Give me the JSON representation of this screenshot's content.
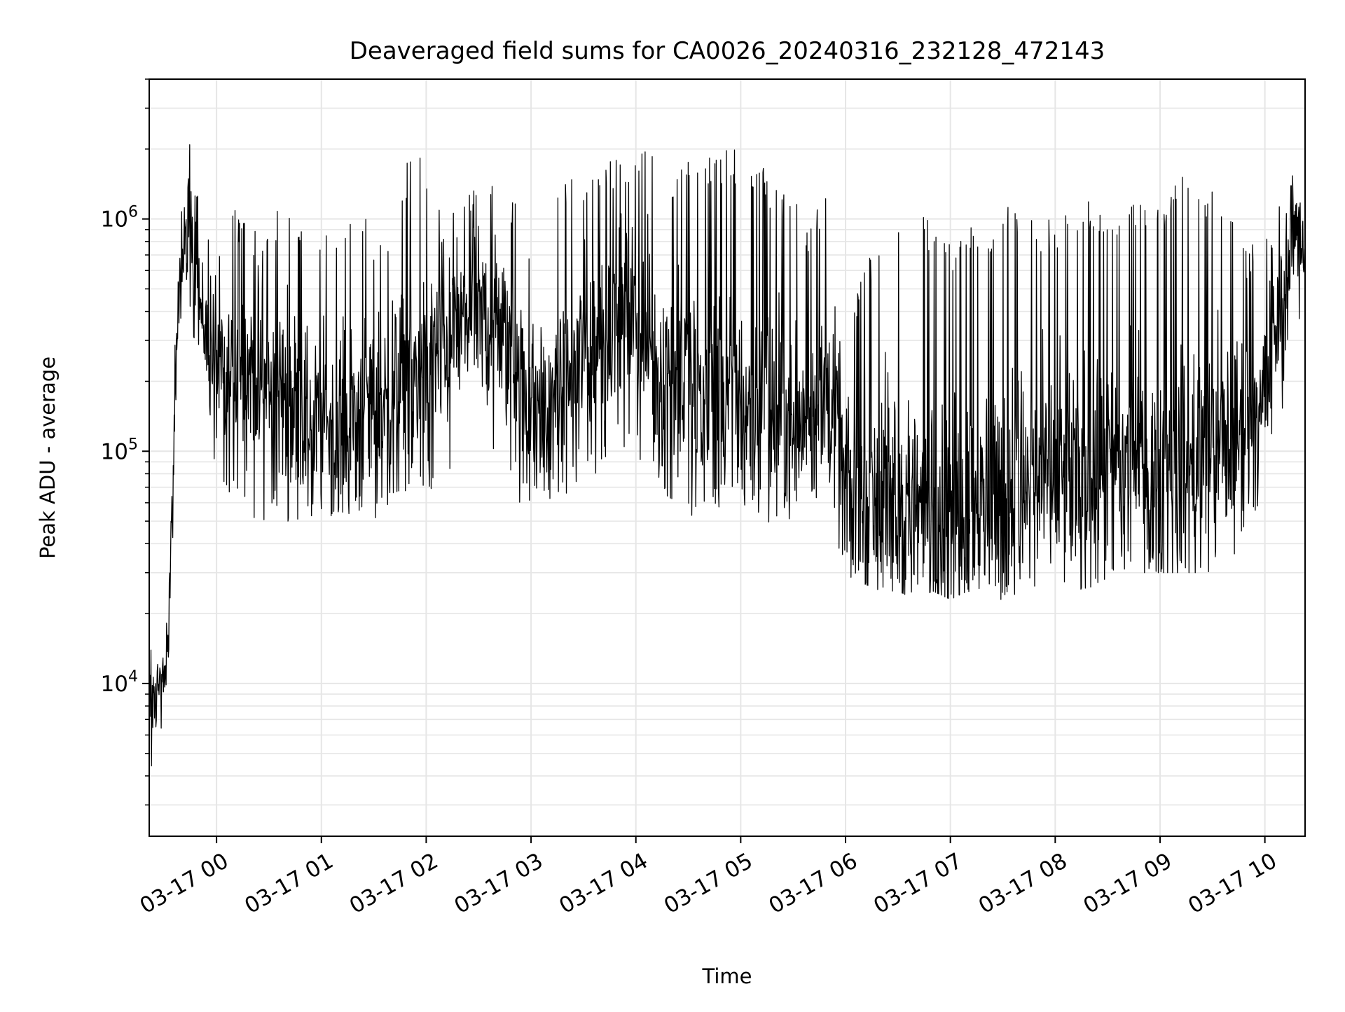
{
  "chart_data": {
    "type": "line",
    "title": "Deaveraged field sums for CA0026_20240316_232128_472143",
    "xlabel": "Time",
    "ylabel": "Peak ADU - average",
    "yscale": "log",
    "ylim": [
      2200,
      4000000
    ],
    "y_major_ticks": [
      10000,
      100000,
      1000000
    ],
    "y_major_tick_labels": [
      {
        "base": "10",
        "exp": "4"
      },
      {
        "base": "10",
        "exp": "5"
      },
      {
        "base": "10",
        "exp": "6"
      }
    ],
    "xlim": [
      "2024-03-16 23:21:28",
      "2024-03-17 10:23:00"
    ],
    "x_ticks": [
      "2024-03-17 00:00",
      "2024-03-17 01:00",
      "2024-03-17 02:00",
      "2024-03-17 03:00",
      "2024-03-17 04:00",
      "2024-03-17 05:00",
      "2024-03-17 06:00",
      "2024-03-17 07:00",
      "2024-03-17 08:00",
      "2024-03-17 09:00",
      "2024-03-17 10:00"
    ],
    "x_tick_labels": [
      "03-17 00",
      "03-17 01",
      "03-17 02",
      "03-17 03",
      "03-17 04",
      "03-17 05",
      "03-17 06",
      "03-17 07",
      "03-17 08",
      "03-17 09",
      "03-17 10"
    ],
    "grid": true,
    "line_color": "#000000",
    "grid_color": "#e6e6e6",
    "series": [
      {
        "x": [
          "2024-03-16 23:21:28",
          "2024-03-16 23:24",
          "2024-03-16 23:27",
          "2024-03-16 23:30",
          "2024-03-16 23:33",
          "2024-03-16 23:36",
          "2024-03-16 23:39",
          "2024-03-16 23:42",
          "2024-03-16 23:45",
          "2024-03-16 23:48",
          "2024-03-16 23:51",
          "2024-03-16 23:55",
          "2024-03-17 00:00",
          "2024-03-17 00:05",
          "2024-03-17 00:10",
          "2024-03-17 00:15",
          "2024-03-17 00:20",
          "2024-03-17 00:30",
          "2024-03-17 00:40",
          "2024-03-17 00:50",
          "2024-03-17 01:00",
          "2024-03-17 01:10",
          "2024-03-17 01:20",
          "2024-03-17 01:30",
          "2024-03-17 01:40",
          "2024-03-17 01:50",
          "2024-03-17 02:00",
          "2024-03-17 02:10",
          "2024-03-17 02:20",
          "2024-03-17 02:30",
          "2024-03-17 02:40",
          "2024-03-17 02:50",
          "2024-03-17 03:00",
          "2024-03-17 03:10",
          "2024-03-17 03:20",
          "2024-03-17 03:30",
          "2024-03-17 03:40",
          "2024-03-17 03:50",
          "2024-03-17 04:00",
          "2024-03-17 04:10",
          "2024-03-17 04:20",
          "2024-03-17 04:30",
          "2024-03-17 04:40",
          "2024-03-17 04:50",
          "2024-03-17 05:00",
          "2024-03-17 05:10",
          "2024-03-17 05:20",
          "2024-03-17 05:30",
          "2024-03-17 05:40",
          "2024-03-17 05:50",
          "2024-03-17 05:55",
          "2024-03-17 06:00",
          "2024-03-17 06:10",
          "2024-03-17 06:20",
          "2024-03-17 06:30",
          "2024-03-17 06:40",
          "2024-03-17 06:50",
          "2024-03-17 07:00",
          "2024-03-17 07:10",
          "2024-03-17 07:20",
          "2024-03-17 07:30",
          "2024-03-17 07:40",
          "2024-03-17 07:50",
          "2024-03-17 08:00",
          "2024-03-17 08:10",
          "2024-03-17 08:20",
          "2024-03-17 08:30",
          "2024-03-17 08:40",
          "2024-03-17 08:50",
          "2024-03-17 09:00",
          "2024-03-17 09:10",
          "2024-03-17 09:20",
          "2024-03-17 09:30",
          "2024-03-17 09:40",
          "2024-03-17 09:50",
          "2024-03-17 10:00",
          "2024-03-17 10:05",
          "2024-03-17 10:10",
          "2024-03-17 10:15",
          "2024-03-17 10:20",
          "2024-03-17 10:23"
        ],
        "center": [
          9000,
          9000,
          9500,
          10000,
          25000,
          120000,
          500000,
          800000,
          1000000,
          700000,
          400000,
          300000,
          250000,
          200000,
          200000,
          220000,
          230000,
          180000,
          170000,
          150000,
          140000,
          130000,
          150000,
          160000,
          170000,
          200000,
          220000,
          300000,
          350000,
          380000,
          350000,
          250000,
          150000,
          150000,
          200000,
          250000,
          300000,
          400000,
          350000,
          250000,
          220000,
          200000,
          180000,
          160000,
          170000,
          150000,
          140000,
          130000,
          150000,
          180000,
          120000,
          70000,
          60000,
          70000,
          60000,
          55000,
          60000,
          55000,
          60000,
          65000,
          65000,
          70000,
          75000,
          75000,
          70000,
          80000,
          80000,
          90000,
          90000,
          80000,
          80000,
          90000,
          100000,
          110000,
          130000,
          180000,
          300000,
          450000,
          800000,
          1100000,
          600000
        ],
        "low": [
          3000,
          5000,
          6000,
          6000,
          15000,
          60000,
          300000,
          500000,
          400000,
          250000,
          150000,
          100000,
          70000,
          60000,
          60000,
          60000,
          40000,
          55000,
          50000,
          50000,
          50000,
          55000,
          50000,
          50000,
          50000,
          70000,
          70000,
          60000,
          80000,
          100000,
          90000,
          60000,
          55000,
          60000,
          65000,
          70000,
          80000,
          100000,
          95000,
          70000,
          55000,
          50000,
          50000,
          55000,
          55000,
          50000,
          40000,
          55000,
          60000,
          60000,
          40000,
          27000,
          27000,
          25000,
          25000,
          23000,
          25000,
          23000,
          25000,
          23000,
          23000,
          24000,
          24000,
          24000,
          25000,
          26000,
          27000,
          30000,
          30000,
          30000,
          30000,
          30000,
          30000,
          30000,
          50000,
          60000,
          120000,
          150000,
          200000,
          300000,
          200000
        ],
        "high": [
          15000,
          17000,
          14000,
          13000,
          60000,
          300000,
          1000000,
          1700000,
          2800000,
          1500000,
          1000000,
          900000,
          1400000,
          1300000,
          1200000,
          1000000,
          900000,
          1000000,
          1300000,
          1000000,
          800000,
          1000000,
          1200000,
          900000,
          900000,
          1900000,
          1800000,
          1100000,
          1300000,
          1500000,
          1700000,
          1200000,
          900000,
          1200000,
          1500000,
          1500000,
          1900000,
          1800000,
          1800000,
          2400000,
          1500000,
          1800000,
          1900000,
          2000000,
          2000000,
          1900000,
          1400000,
          1200000,
          1000000,
          1400000,
          1000000,
          400000,
          600000,
          1000000,
          1200000,
          1100000,
          1000000,
          800000,
          1000000,
          900000,
          1100000,
          1200000,
          1000000,
          1000000,
          1100000,
          1200000,
          1200000,
          1200000,
          1200000,
          1200000,
          1600000,
          1500000,
          1400000,
          1200000,
          700000,
          1200000,
          1000000,
          1500000,
          2200000,
          2200000,
          700000
        ]
      }
    ]
  }
}
